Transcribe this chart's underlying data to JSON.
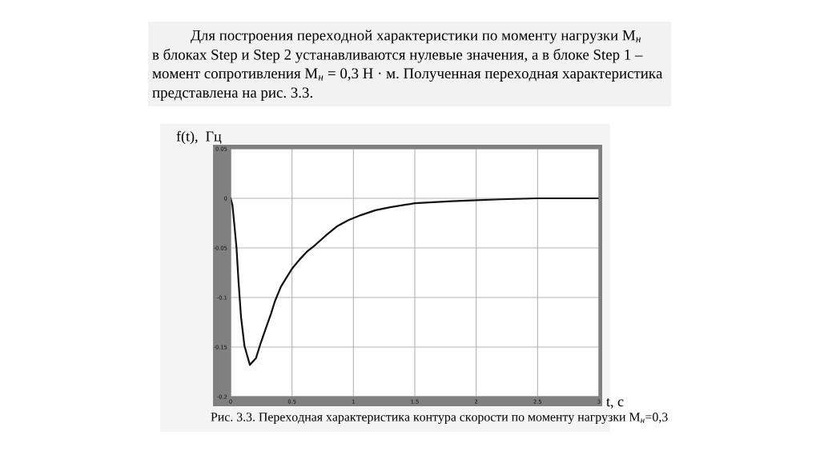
{
  "chart_data": {
    "type": "line",
    "title": "Рис. 3.3. Переходная характеристика контура скорости по моменту нагрузки M$_{н}$=0,3",
    "xlabel": "t, с",
    "ylabel": "f(t),  Гц",
    "annotations": [
      "Для построения переходной характеристики по моменту нагрузки M$_{н}$\nв блоках Step и Step 2 устанавливаются нулевые значения, а в блоке Step 1 –\nмомент сопротивления M$_{н}$ = 0,3 Н · м. Полученная переходная характеристика\nпредставлена на рис. 3.3."
    ],
    "x": [
      0,
      0.015,
      0.03,
      0.048,
      0.065,
      0.085,
      0.113,
      0.157,
      0.207,
      0.245,
      0.29,
      0.33,
      0.36,
      0.41,
      0.45,
      0.5,
      0.56,
      0.62,
      0.69,
      0.78,
      0.87,
      0.96,
      1.06,
      1.18,
      1.3,
      1.4,
      1.5,
      1.65,
      1.8,
      2.0,
      2.2,
      2.5,
      2.8,
      3.0
    ],
    "series": [
      {
        "color": "#111111",
        "values": [
          0,
          -0.007,
          -0.026,
          -0.05,
          -0.085,
          -0.12,
          -0.149,
          -0.168,
          -0.161,
          -0.146,
          -0.13,
          -0.116,
          -0.104,
          -0.089,
          -0.081,
          -0.071,
          -0.062,
          -0.054,
          -0.047,
          -0.037,
          -0.028,
          -0.022,
          -0.017,
          -0.012,
          -0.009,
          -0.007,
          -0.005,
          -0.004,
          -0.003,
          -0.002,
          -0.001,
          0,
          0,
          0
        ]
      }
    ],
    "xlim": [
      0,
      3
    ],
    "ylim": [
      -0.2,
      0.05
    ],
    "xticks": [
      0,
      0.5,
      1,
      1.5,
      2,
      2.5,
      3
    ],
    "yticks": [
      -0.2,
      -0.15,
      -0.1,
      -0.05,
      0,
      0.05
    ],
    "grid": true,
    "line_style": "solid"
  }
}
